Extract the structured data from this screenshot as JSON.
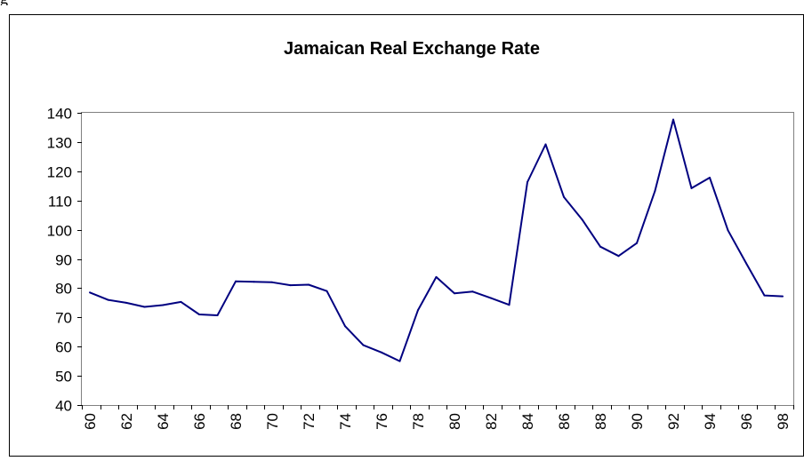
{
  "chart_data": {
    "type": "line",
    "title": "Jamaican Real Exchange Rate",
    "xlabel": "",
    "ylabel": "",
    "ylim": [
      40,
      140
    ],
    "yticks": [
      "40",
      "50",
      "60",
      "70",
      "80",
      "90",
      "100",
      "110",
      "120",
      "130",
      "140"
    ],
    "xticks": [
      "60",
      "62",
      "64",
      "66",
      "68",
      "70",
      "72",
      "74",
      "76",
      "78",
      "80",
      "82",
      "84",
      "86",
      "88",
      "90",
      "92",
      "94",
      "96",
      "98"
    ],
    "grid": false,
    "legend": "none",
    "series": [
      {
        "color": "#000080",
        "x": [
          60,
          61,
          62,
          63,
          64,
          65,
          66,
          67,
          68,
          69,
          70,
          71,
          72,
          73,
          74,
          75,
          76,
          77,
          78,
          79,
          80,
          81,
          82,
          83,
          84,
          85,
          86,
          87,
          88,
          89,
          90,
          91,
          92,
          93,
          94,
          95,
          96,
          97,
          98
        ],
        "values": [
          78.5,
          76,
          75,
          73.6,
          74.2,
          75.3,
          71,
          70.7,
          82.3,
          82.2,
          82,
          81,
          81.2,
          79,
          67,
          60.5,
          58,
          55,
          72.5,
          83.8,
          78.2,
          78.8,
          76.6,
          74.3,
          116.3,
          129.2,
          111.2,
          103.5,
          94.2,
          91,
          95.4,
          113.3,
          137.7,
          114.2,
          117.8,
          99.8,
          88.5,
          77.5,
          77.2
        ]
      }
    ]
  },
  "page_fragment": "g"
}
